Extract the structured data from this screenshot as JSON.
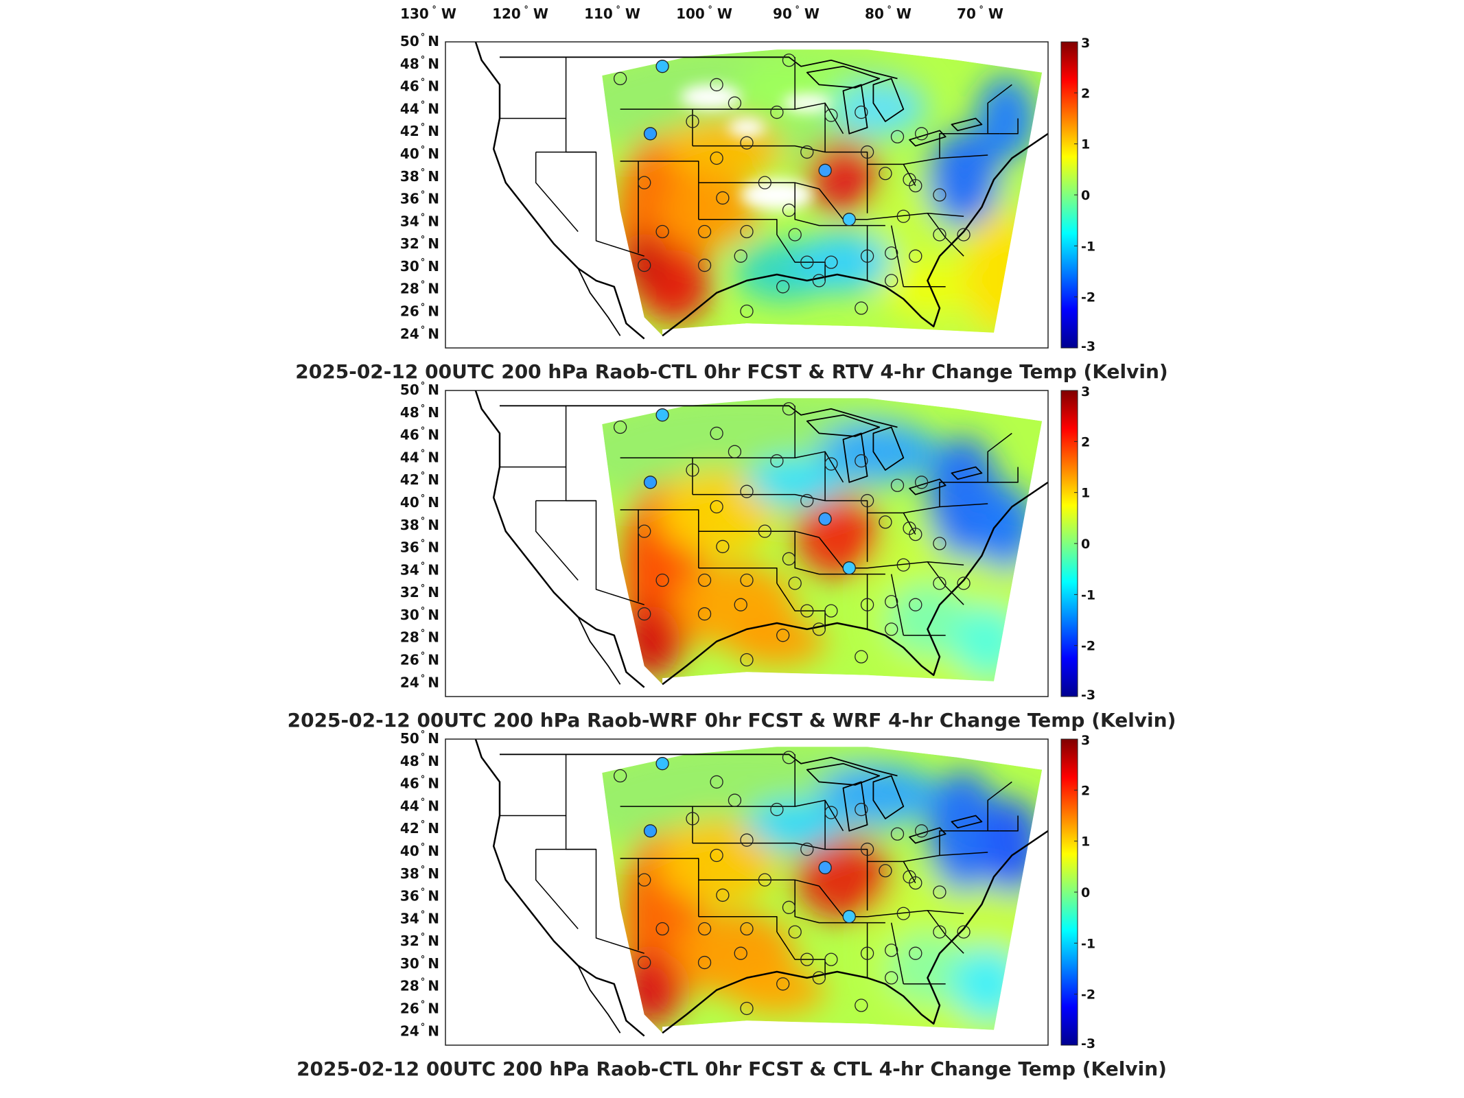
{
  "figure": {
    "longitude_labels": [
      "130",
      "120",
      "110",
      "100",
      "90",
      "80",
      "70"
    ],
    "longitude_hemisphere": "W",
    "latitude_labels": [
      "50",
      "48",
      "46",
      "44",
      "42",
      "40",
      "38",
      "36",
      "34",
      "32",
      "30",
      "28",
      "26",
      "24"
    ],
    "latitude_hemisphere": "N",
    "degree_symbol": "°",
    "colorbar": {
      "ticks": [
        "3",
        "2",
        "1",
        "0",
        "-1",
        "-2",
        "-3"
      ],
      "range": [
        -3,
        3
      ],
      "colormap": "jet",
      "colors": [
        "#00008f",
        "#0000ff",
        "#00ffff",
        "#80ff80",
        "#ffff00",
        "#ff0000",
        "#800000"
      ]
    },
    "map_style": {
      "no_data_color": "#ffffff",
      "boundary_color": "#000000",
      "ocean_color": "#ffffff"
    }
  },
  "panels": [
    {
      "title": "2025-02-12 00UTC 200 hPa Raob-CTL 0hr FCST & RTV 4-hr Change Temp (Kelvin)",
      "field_pattern": "rtv"
    },
    {
      "title": "2025-02-12 00UTC 200 hPa Raob-WRF 0hr FCST & WRF 4-hr Change Temp (Kelvin)",
      "field_pattern": "wrf"
    },
    {
      "title": "2025-02-12 00UTC 200 hPa Raob-CTL 0hr FCST & CTL 4-hr Change Temp (Kelvin)",
      "field_pattern": "ctl"
    }
  ]
}
